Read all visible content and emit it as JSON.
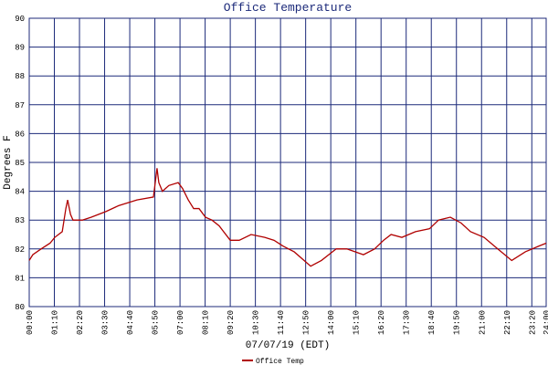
{
  "chart_data": {
    "type": "line",
    "title": "Office Temperature",
    "x_label": "07/07/19 (EDT)",
    "y_label": "Degrees F",
    "x": [
      0,
      10,
      33,
      58,
      71,
      92,
      102,
      107,
      115,
      122,
      148,
      173,
      214,
      249,
      300,
      346,
      356,
      361,
      371,
      389,
      415,
      427,
      443,
      458,
      473,
      491,
      509,
      529,
      560,
      585,
      618,
      656,
      682,
      707,
      738,
      784,
      814,
      855,
      885,
      931,
      962,
      987,
      1008,
      1038,
      1076,
      1115,
      1140,
      1173,
      1203,
      1229,
      1267,
      1305,
      1344,
      1382,
      1420,
      1440
    ],
    "series": [
      {
        "name": "Office Temp",
        "color": "#b00000",
        "values": [
          81.6,
          81.8,
          82.0,
          82.2,
          82.4,
          82.6,
          83.4,
          83.7,
          83.2,
          83.0,
          83.0,
          83.1,
          83.3,
          83.5,
          83.7,
          83.8,
          84.8,
          84.3,
          84.0,
          84.2,
          84.3,
          84.1,
          83.7,
          83.4,
          83.4,
          83.1,
          83.0,
          82.8,
          82.3,
          82.3,
          82.5,
          82.4,
          82.3,
          82.1,
          81.9,
          81.4,
          81.6,
          82.0,
          82.0,
          81.8,
          82.0,
          82.3,
          82.5,
          82.4,
          82.6,
          82.7,
          83.0,
          83.1,
          82.9,
          82.6,
          82.4,
          82.0,
          81.6,
          81.9,
          82.1,
          82.2
        ]
      }
    ],
    "xlim": [
      0,
      1440
    ],
    "xticks": [
      {
        "value": 0,
        "label": "00:00"
      },
      {
        "value": 70,
        "label": "01:10"
      },
      {
        "value": 140,
        "label": "02:20"
      },
      {
        "value": 210,
        "label": "03:30"
      },
      {
        "value": 280,
        "label": "04:40"
      },
      {
        "value": 350,
        "label": "05:50"
      },
      {
        "value": 420,
        "label": "07:00"
      },
      {
        "value": 490,
        "label": "08:10"
      },
      {
        "value": 560,
        "label": "09:20"
      },
      {
        "value": 630,
        "label": "10:30"
      },
      {
        "value": 700,
        "label": "11:40"
      },
      {
        "value": 770,
        "label": "12:50"
      },
      {
        "value": 840,
        "label": "14:00"
      },
      {
        "value": 910,
        "label": "15:10"
      },
      {
        "value": 980,
        "label": "16:20"
      },
      {
        "value": 1050,
        "label": "17:30"
      },
      {
        "value": 1120,
        "label": "18:40"
      },
      {
        "value": 1190,
        "label": "19:50"
      },
      {
        "value": 1260,
        "label": "21:00"
      },
      {
        "value": 1330,
        "label": "22:10"
      },
      {
        "value": 1400,
        "label": "23:20"
      },
      {
        "value": 1440,
        "label": "24:00"
      }
    ],
    "ylim": [
      80,
      90
    ],
    "yticks": [
      80,
      81,
      82,
      83,
      84,
      85,
      86,
      87,
      88,
      89,
      90
    ],
    "grid": true,
    "grid_color": "#1c2a7a",
    "legend": "bottom"
  }
}
